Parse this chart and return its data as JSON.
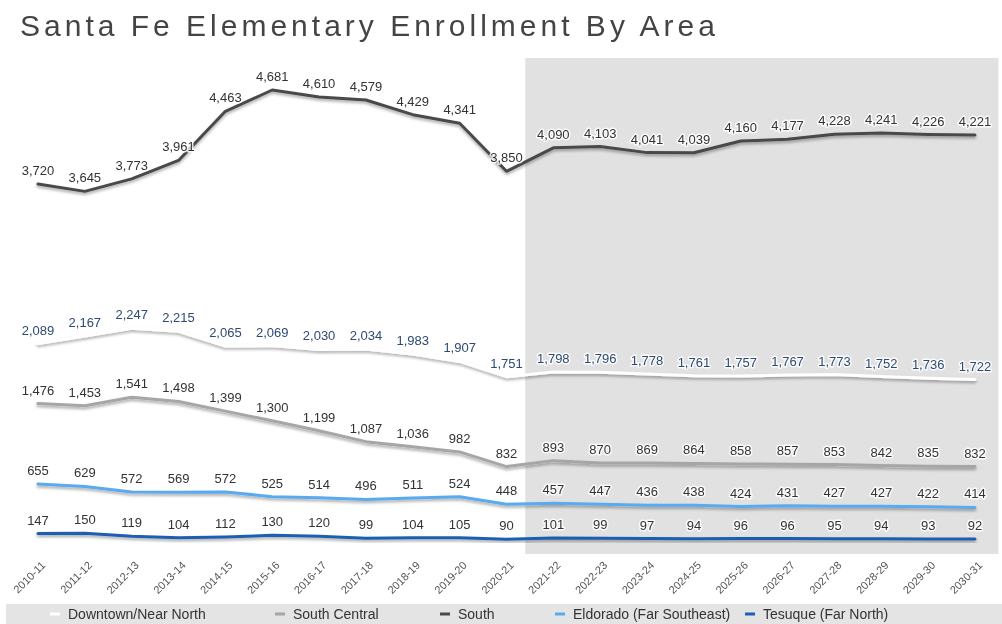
{
  "chart_data": {
    "type": "line",
    "title": "Santa Fe Elementary Enrollment By Area",
    "categories": [
      "2010-11",
      "2011-12",
      "2012-13",
      "2013-14",
      "2014-15",
      "2015-16",
      "2016-17",
      "2017-18",
      "2018-19",
      "2019-20",
      "2020-21",
      "2021-22",
      "2022-23",
      "2023-24",
      "2024-25",
      "2025-26",
      "2026-27",
      "2027-28",
      "2028-29",
      "2029-30",
      "2030-31"
    ],
    "series": [
      {
        "name": "Downtown/Near North",
        "color": "#ffffff",
        "values": [
          2089,
          2167,
          2247,
          2215,
          2065,
          2069,
          2030,
          2034,
          1983,
          1907,
          1751,
          1798,
          1796,
          1778,
          1761,
          1757,
          1767,
          1773,
          1752,
          1736,
          1722
        ],
        "value_labels": [
          "2,089",
          "2,167",
          "2,247",
          "2,215",
          "2,065",
          "2,069",
          "2,030",
          "2,034",
          "1,983",
          "1,907",
          "1,751",
          "1,798",
          "1,796",
          "1,778",
          "1,761",
          "1,757",
          "1,767",
          "1,773",
          "1,752",
          "1,736",
          "1,722"
        ]
      },
      {
        "name": "South Central",
        "color": "#a6a6a6",
        "values": [
          1476,
          1453,
          1541,
          1498,
          1399,
          1300,
          1199,
          1087,
          1036,
          982,
          832,
          893,
          870,
          869,
          864,
          858,
          857,
          853,
          842,
          835,
          832
        ],
        "value_labels": [
          "1,476",
          "1,453",
          "1,541",
          "1,498",
          "1,399",
          "1,300",
          "1,199",
          "1,087",
          "1,036",
          "982",
          "832",
          "893",
          "870",
          "869",
          "864",
          "858",
          "857",
          "853",
          "842",
          "835",
          "832"
        ]
      },
      {
        "name": "South",
        "color": "#4a4a4a",
        "values": [
          3720,
          3645,
          3773,
          3961,
          4463,
          4681,
          4610,
          4579,
          4429,
          4341,
          3850,
          4090,
          4103,
          4041,
          4039,
          4160,
          4177,
          4228,
          4241,
          4226,
          4221
        ],
        "value_labels": [
          "3,720",
          "3,645",
          "3,773",
          "3,961",
          "4,463",
          "4,681",
          "4,610",
          "4,579",
          "4,429",
          "4,341",
          "3,850",
          "4,090",
          "4,103",
          "4,041",
          "4,039",
          "4,160",
          "4,177",
          "4,228",
          "4,241",
          "4,226",
          "4,221"
        ]
      },
      {
        "name": "Eldorado (Far Southeast)",
        "color": "#5aaaf0",
        "values": [
          655,
          629,
          572,
          569,
          572,
          525,
          514,
          496,
          511,
          524,
          448,
          457,
          447,
          436,
          438,
          424,
          431,
          427,
          427,
          422,
          414
        ],
        "value_labels": [
          "655",
          "629",
          "572",
          "569",
          "572",
          "525",
          "514",
          "496",
          "511",
          "524",
          "448",
          "457",
          "447",
          "436",
          "438",
          "424",
          "431",
          "427",
          "427",
          "422",
          "414"
        ]
      },
      {
        "name": "Tesuque (Far North)",
        "color": "#1f5fb0",
        "values": [
          147,
          150,
          119,
          104,
          112,
          130,
          120,
          99,
          104,
          105,
          90,
          101,
          99,
          97,
          94,
          96,
          96,
          95,
          94,
          93,
          92
        ],
        "value_labels": [
          "147",
          "150",
          "119",
          "104",
          "112",
          "130",
          "120",
          "99",
          "104",
          "105",
          "90",
          "101",
          "99",
          "97",
          "94",
          "96",
          "96",
          "95",
          "94",
          "93",
          "92"
        ]
      }
    ],
    "bands": [
      {
        "axis": "x",
        "from": "2021-22",
        "to": "2030-31",
        "color": "#d4d4d4"
      }
    ],
    "legend": "bottom",
    "marker": "none",
    "line_style": "solid"
  }
}
